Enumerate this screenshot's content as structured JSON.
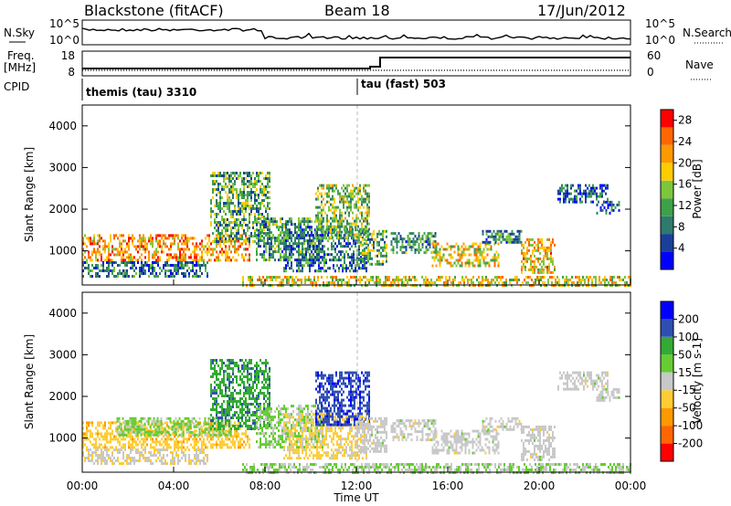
{
  "header": {
    "title": "Blackstone (fitACF)",
    "beam": "Beam 18",
    "date": "17/Jun/2012"
  },
  "top_panels": {
    "nsky_label": "N.Sky",
    "nsearch_label": "N.Search",
    "freq_label_line1": "Freq.",
    "freq_label_line2": "[MHz]",
    "nave_label": "Nave",
    "cpid_label": "CPID",
    "noise_ticks_left": [
      "10^5",
      "10^0"
    ],
    "noise_ticks_right": [
      "10^5",
      "10^0"
    ],
    "freq_ticks_left": [
      "18",
      "8"
    ],
    "nave_ticks_right": [
      "60",
      "0"
    ],
    "modes": [
      {
        "label": "themis (tau) 3310",
        "start_hour": 0
      },
      {
        "label": "tau (fast) 503",
        "start_hour": 12
      }
    ]
  },
  "colors": {
    "power_scale": [
      "#0000ff",
      "#1a3f9a",
      "#2f7a6e",
      "#3fa04a",
      "#7cc63c",
      "#ffcc00",
      "#ff9900",
      "#ff6600",
      "#ff0000"
    ],
    "velocity_scale": [
      "#ff0000",
      "#ff6600",
      "#ff9900",
      "#ffcc33",
      "#c8c8c8",
      "#66cc33",
      "#33aa33",
      "#2f4fb0",
      "#0000ff"
    ]
  },
  "chart_data": [
    {
      "type": "heatmap",
      "name": "power",
      "ylabel": "Slant Range [km]",
      "xlabel": "Time UT",
      "x_ticks": [
        "00:00",
        "04:00",
        "08:00",
        "12:00",
        "16:00",
        "20:00",
        "00:00"
      ],
      "y_ticks": [
        "1000",
        "2000",
        "3000",
        "4000"
      ],
      "ylim": [
        180,
        4500
      ],
      "xlim": [
        0,
        24
      ],
      "colorbar_label": "Power [dB]",
      "colorbar_ticks": [
        "4",
        "8",
        "12",
        "16",
        "20",
        "24",
        "28"
      ],
      "colorbar_range": [
        0,
        30
      ],
      "regions": [
        {
          "t0": 0.0,
          "t1": 7.3,
          "r0": 750,
          "r1": 1400,
          "value": 22
        },
        {
          "t0": 0.0,
          "t1": 5.5,
          "r0": 400,
          "r1": 750,
          "value": 8
        },
        {
          "t0": 5.6,
          "t1": 8.2,
          "r0": 1200,
          "r1": 2900,
          "value": 12
        },
        {
          "t0": 7.6,
          "t1": 10.5,
          "r0": 800,
          "r1": 1800,
          "value": 10
        },
        {
          "t0": 8.8,
          "t1": 12.4,
          "r0": 500,
          "r1": 1600,
          "value": 8
        },
        {
          "t0": 10.2,
          "t1": 12.6,
          "r0": 1300,
          "r1": 2600,
          "value": 14
        },
        {
          "t0": 12.0,
          "t1": 13.3,
          "r0": 650,
          "r1": 1500,
          "value": 12
        },
        {
          "t0": 13.5,
          "t1": 15.5,
          "r0": 950,
          "r1": 1450,
          "value": 10
        },
        {
          "t0": 15.3,
          "t1": 18.2,
          "r0": 650,
          "r1": 1200,
          "value": 18
        },
        {
          "t0": 17.5,
          "t1": 19.2,
          "r0": 1200,
          "r1": 1500,
          "value": 10
        },
        {
          "t0": 19.2,
          "t1": 20.7,
          "r0": 500,
          "r1": 1300,
          "value": 20
        },
        {
          "t0": 20.8,
          "t1": 23.0,
          "r0": 2150,
          "r1": 2600,
          "value": 6
        },
        {
          "t0": 22.5,
          "t1": 23.5,
          "r0": 1900,
          "r1": 2200,
          "value": 6
        },
        {
          "t0": 7.0,
          "t1": 24.0,
          "r0": 180,
          "r1": 400,
          "value": 18
        }
      ]
    },
    {
      "type": "heatmap",
      "name": "velocity",
      "ylabel": "Slant Range [km]",
      "xlabel": "Time UT",
      "x_ticks": [
        "00:00",
        "04:00",
        "08:00",
        "12:00",
        "16:00",
        "20:00",
        "00:00"
      ],
      "y_ticks": [
        "1000",
        "2000",
        "3000",
        "4000"
      ],
      "ylim": [
        180,
        4500
      ],
      "xlim": [
        0,
        24
      ],
      "colorbar_label": "Velocity [m s-1]",
      "colorbar_ticks": [
        "-200",
        "-100",
        "-50",
        "-15",
        "15",
        "50",
        "100",
        "200"
      ],
      "colorbar_range": [
        -250,
        250
      ],
      "regions": [
        {
          "t0": 0.0,
          "t1": 7.3,
          "r0": 750,
          "r1": 1400,
          "value": -60
        },
        {
          "t0": 0.0,
          "t1": 5.5,
          "r0": 400,
          "r1": 750,
          "value": -20
        },
        {
          "t0": 1.5,
          "t1": 6.5,
          "r0": 1100,
          "r1": 1500,
          "value": 40
        },
        {
          "t0": 5.6,
          "t1": 8.2,
          "r0": 1200,
          "r1": 2900,
          "value": 120
        },
        {
          "t0": 7.6,
          "t1": 10.5,
          "r0": 800,
          "r1": 1800,
          "value": 40
        },
        {
          "t0": 8.8,
          "t1": 12.4,
          "r0": 500,
          "r1": 1600,
          "value": -40
        },
        {
          "t0": 10.2,
          "t1": 12.6,
          "r0": 1300,
          "r1": 2600,
          "value": 180
        },
        {
          "t0": 12.0,
          "t1": 13.3,
          "r0": 650,
          "r1": 1500,
          "value": 0
        },
        {
          "t0": 13.5,
          "t1": 15.5,
          "r0": 950,
          "r1": 1450,
          "value": 0
        },
        {
          "t0": 15.3,
          "t1": 18.2,
          "r0": 650,
          "r1": 1200,
          "value": 0
        },
        {
          "t0": 17.5,
          "t1": 19.2,
          "r0": 1200,
          "r1": 1500,
          "value": 0
        },
        {
          "t0": 19.2,
          "t1": 20.7,
          "r0": 500,
          "r1": 1300,
          "value": 0
        },
        {
          "t0": 20.8,
          "t1": 23.0,
          "r0": 2150,
          "r1": 2600,
          "value": 0
        },
        {
          "t0": 22.5,
          "t1": 23.5,
          "r0": 1900,
          "r1": 2200,
          "value": 0
        },
        {
          "t0": 7.0,
          "t1": 24.0,
          "r0": 180,
          "r1": 400,
          "value": 30
        }
      ]
    }
  ]
}
